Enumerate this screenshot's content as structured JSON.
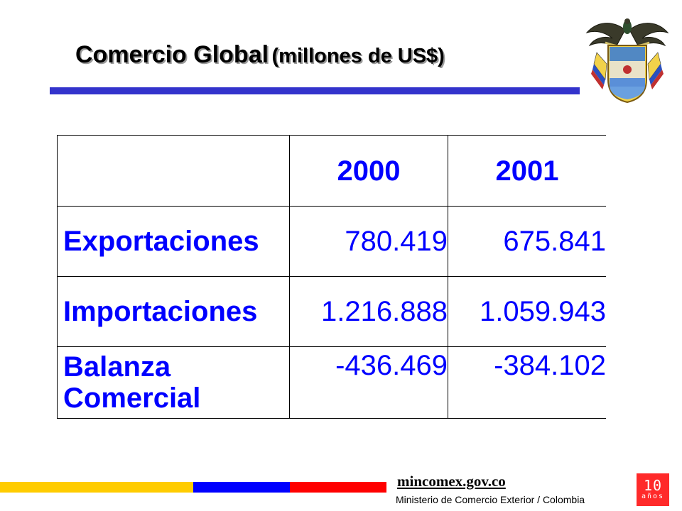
{
  "title": {
    "main": "Comercio Global",
    "sub": "(millones de US$)"
  },
  "table": {
    "headers": [
      "",
      "2000",
      "2001"
    ],
    "rows": [
      {
        "label": "Exportaciones",
        "values": [
          "780.419",
          "675.841"
        ]
      },
      {
        "label": "Importaciones",
        "values": [
          "1.216.888",
          "1.059.943"
        ]
      },
      {
        "label_lines": [
          "Balanza",
          "Comercial"
        ],
        "values": [
          "-436.469",
          "-384.102"
        ]
      }
    ]
  },
  "footer": {
    "site": "mincomex.gov.co",
    "ministry": "Ministerio de Comercio Exterior / Colombia",
    "badge_number": "10",
    "badge_text": "años"
  },
  "colors": {
    "text_blue": "#0000ff",
    "rule_blue": "#3333cc",
    "flag_yellow": "#ffcc00",
    "flag_blue": "#0000ff",
    "flag_red": "#ff0000"
  },
  "icons": {
    "emblem": "coat-of-arms-icon"
  }
}
